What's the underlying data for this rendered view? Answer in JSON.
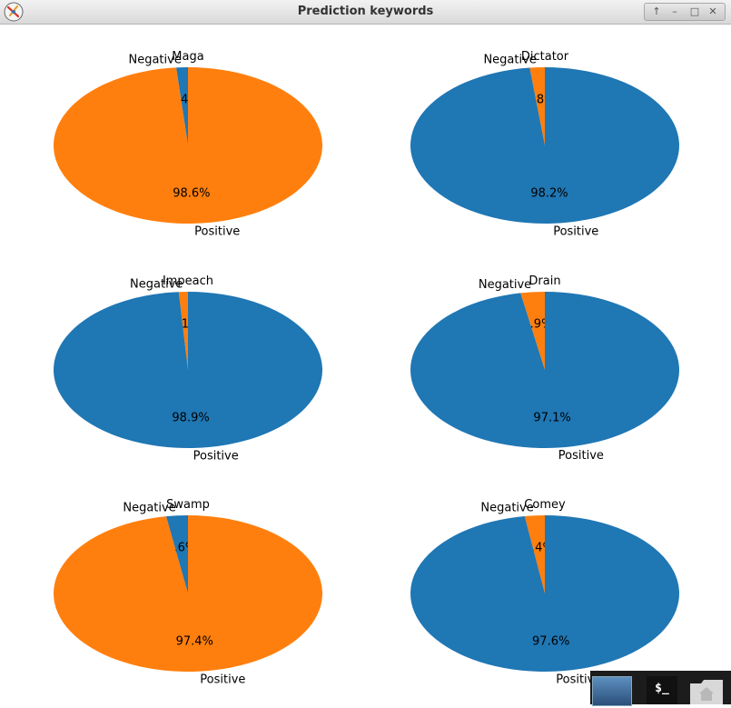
{
  "window": {
    "title": "Prediction keywords"
  },
  "colors": {
    "negative": "#1f77b4",
    "positive": "#ff7f0e"
  },
  "taskbar": {
    "terminal_label": "$_"
  },
  "chart_data": [
    {
      "type": "pie",
      "title": "Maga",
      "labels": [
        "Negative",
        "Positive"
      ],
      "values": [
        1.4,
        98.6
      ],
      "pct_labels": [
        "1.4%",
        "98.6%"
      ],
      "colors": [
        "#1f77b4",
        "#ff7f0e"
      ]
    },
    {
      "type": "pie",
      "title": "Dictator",
      "labels": [
        "Negative",
        "Positive"
      ],
      "values": [
        1.8,
        98.2
      ],
      "pct_labels": [
        "1.8%",
        "98.2%"
      ],
      "colors": [
        "#ff7f0e",
        "#1f77b4"
      ]
    },
    {
      "type": "pie",
      "title": "Impeach",
      "labels": [
        "Negative",
        "Positive"
      ],
      "values": [
        1.1,
        98.9
      ],
      "pct_labels": [
        "1.1%",
        "98.9%"
      ],
      "colors": [
        "#ff7f0e",
        "#1f77b4"
      ]
    },
    {
      "type": "pie",
      "title": "Drain",
      "labels": [
        "Negative",
        "Positive"
      ],
      "values": [
        2.9,
        97.1
      ],
      "pct_labels": [
        "2.9%",
        "97.1%"
      ],
      "colors": [
        "#ff7f0e",
        "#1f77b4"
      ]
    },
    {
      "type": "pie",
      "title": "Swamp",
      "labels": [
        "Negative",
        "Positive"
      ],
      "values": [
        2.6,
        97.4
      ],
      "pct_labels": [
        "2.6%",
        "97.4%"
      ],
      "colors": [
        "#1f77b4",
        "#ff7f0e"
      ]
    },
    {
      "type": "pie",
      "title": "Comey",
      "labels": [
        "Negative",
        "Positive"
      ],
      "values": [
        2.4,
        97.6
      ],
      "pct_labels": [
        "2.4%",
        "97.6%"
      ],
      "colors": [
        "#ff7f0e",
        "#1f77b4"
      ]
    }
  ]
}
